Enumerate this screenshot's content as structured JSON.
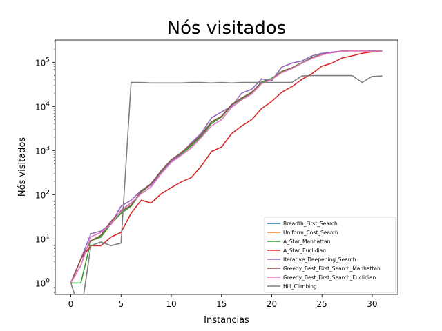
{
  "chart_data": {
    "type": "line",
    "title": "Nós visitados",
    "xlabel": "Instancias",
    "ylabel": "Nós visitados",
    "yscale": "log",
    "xlim": [
      -1.55,
      32.55
    ],
    "ylim": [
      0.55,
      320000
    ],
    "xticks": [
      0,
      5,
      10,
      15,
      20,
      25,
      30
    ],
    "yticks": [
      {
        "value": 1,
        "base": "10",
        "exp": "0"
      },
      {
        "value": 10,
        "base": "10",
        "exp": "1"
      },
      {
        "value": 100,
        "base": "10",
        "exp": "2"
      },
      {
        "value": 1000,
        "base": "10",
        "exp": "3"
      },
      {
        "value": 10000,
        "base": "10",
        "exp": "4"
      },
      {
        "value": 100000,
        "base": "10",
        "exp": "5"
      }
    ],
    "grid": false,
    "legend_position": "lower-right",
    "x": [
      0,
      1,
      2,
      3,
      4,
      5,
      6,
      7,
      8,
      9,
      10,
      11,
      12,
      13,
      14,
      15,
      16,
      17,
      18,
      19,
      20,
      21,
      22,
      23,
      24,
      25,
      26,
      27,
      28,
      29,
      30,
      31
    ],
    "series": [
      {
        "name": "Breadth_First_Search",
        "color": "#1f77b4",
        "values": [
          1,
          3.5,
          9,
          12,
          22,
          38,
          55,
          115,
          170,
          330,
          580,
          840,
          1280,
          2150,
          4100,
          5800,
          10500,
          15000,
          20500,
          36000,
          43000,
          62000,
          75000,
          98000,
          128000,
          152000,
          168000,
          180000,
          183000,
          182000,
          181000,
          181000
        ]
      },
      {
        "name": "Uniform_Cost_Search",
        "color": "#ff7f0e",
        "values": [
          1,
          3.5,
          9,
          12,
          22,
          38,
          55,
          115,
          170,
          330,
          580,
          840,
          1280,
          2150,
          4100,
          5800,
          10500,
          15000,
          20500,
          36000,
          43000,
          62000,
          75000,
          98000,
          128000,
          152000,
          168000,
          180000,
          183000,
          182000,
          181000,
          181000
        ]
      },
      {
        "name": "A_Star_Manhattan",
        "color": "#2ca02c",
        "values": [
          1,
          1,
          9,
          11,
          22,
          38,
          55,
          115,
          170,
          330,
          580,
          840,
          1280,
          2150,
          4100,
          5800,
          10500,
          15000,
          20500,
          36000,
          43000,
          62000,
          75000,
          98000,
          128000,
          152000,
          168000,
          180000,
          183000,
          182000,
          181000,
          181000
        ]
      },
      {
        "name": "A_Star_Euclidian",
        "color": "#d62728",
        "values": [
          1,
          3.5,
          7,
          7,
          11,
          14,
          38,
          75,
          65,
          105,
          145,
          195,
          245,
          450,
          950,
          1200,
          2400,
          3600,
          5000,
          9000,
          13000,
          21000,
          28000,
          41000,
          55000,
          82000,
          96000,
          125000,
          140000,
          160000,
          172000,
          180000
        ]
      },
      {
        "name": "Iterative_Deepening_Search",
        "color": "#9467bd",
        "values": [
          1,
          3.5,
          13,
          15,
          22,
          55,
          75,
          125,
          165,
          310,
          570,
          880,
          1500,
          2500,
          5500,
          7500,
          10000,
          20000,
          24500,
          42000,
          38000,
          78000,
          96000,
          107000,
          140000,
          160000,
          170000,
          180000,
          183000,
          182000,
          181000,
          181000
        ]
      },
      {
        "name": "Greedy_Best_First_Search_Manhattan",
        "color": "#8c564b",
        "values": [
          1,
          3.5,
          9,
          12,
          25,
          42,
          58,
          120,
          180,
          350,
          620,
          900,
          1400,
          2300,
          4500,
          6000,
          11000,
          15500,
          21000,
          34000,
          41000,
          60000,
          74000,
          96000,
          125000,
          150000,
          166000,
          178000,
          182000,
          181000,
          180000,
          180000
        ]
      },
      {
        "name": "Greedy_Best_First_Search_Euclidian",
        "color": "#e377c2",
        "values": [
          1,
          2.5,
          11,
          14,
          21,
          45,
          65,
          105,
          150,
          300,
          540,
          780,
          1150,
          2000,
          3600,
          5000,
          9500,
          14000,
          19000,
          33000,
          41000,
          58000,
          72000,
          95000,
          122000,
          148000,
          165000,
          178000,
          182000,
          181000,
          180000,
          180000
        ]
      },
      {
        "name": "Hill_Climbing",
        "color": "#7f7f7f",
        "values": [
          1,
          0.2,
          7,
          8.5,
          7,
          8,
          35000,
          35000,
          34000,
          34000,
          34000,
          34000,
          35000,
          35000,
          34000,
          35000,
          34000,
          35000,
          35000,
          35000,
          35000,
          35000,
          35000,
          49000,
          50000,
          50000,
          50000,
          50000,
          50000,
          35000,
          48000,
          49000
        ]
      }
    ]
  }
}
